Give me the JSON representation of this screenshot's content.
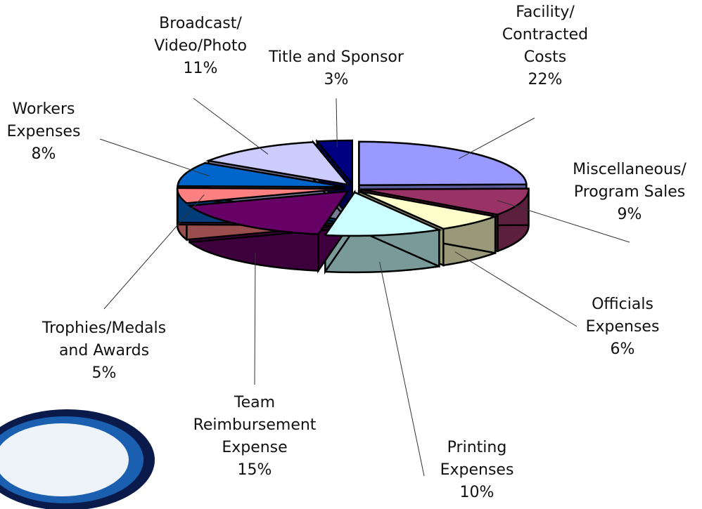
{
  "chart_data": {
    "type": "pie",
    "categories": [
      "Facility/\nContracted\nCosts",
      "Miscellaneous/\nProgram Sales",
      "Officials\nExpenses",
      "Printing\nExpenses",
      "Team\nReimbursement\nExpense",
      "Trophies/Medals\nand Awards",
      "Workers\nExpenses",
      "Broadcast/\nVideo/Photo",
      "Title and Sponsor"
    ],
    "values": [
      22,
      9,
      6,
      10,
      15,
      5,
      8,
      11,
      3
    ],
    "value_labels": [
      "22%",
      "9%",
      "6%",
      "10%",
      "15%",
      "5%",
      "8%",
      "11%",
      "3%"
    ],
    "colors": [
      "#9999ff",
      "#993366",
      "#ffffcc",
      "#ccffff",
      "#660066",
      "#ff8080",
      "#0066cc",
      "#ccccff",
      "#000080"
    ]
  }
}
